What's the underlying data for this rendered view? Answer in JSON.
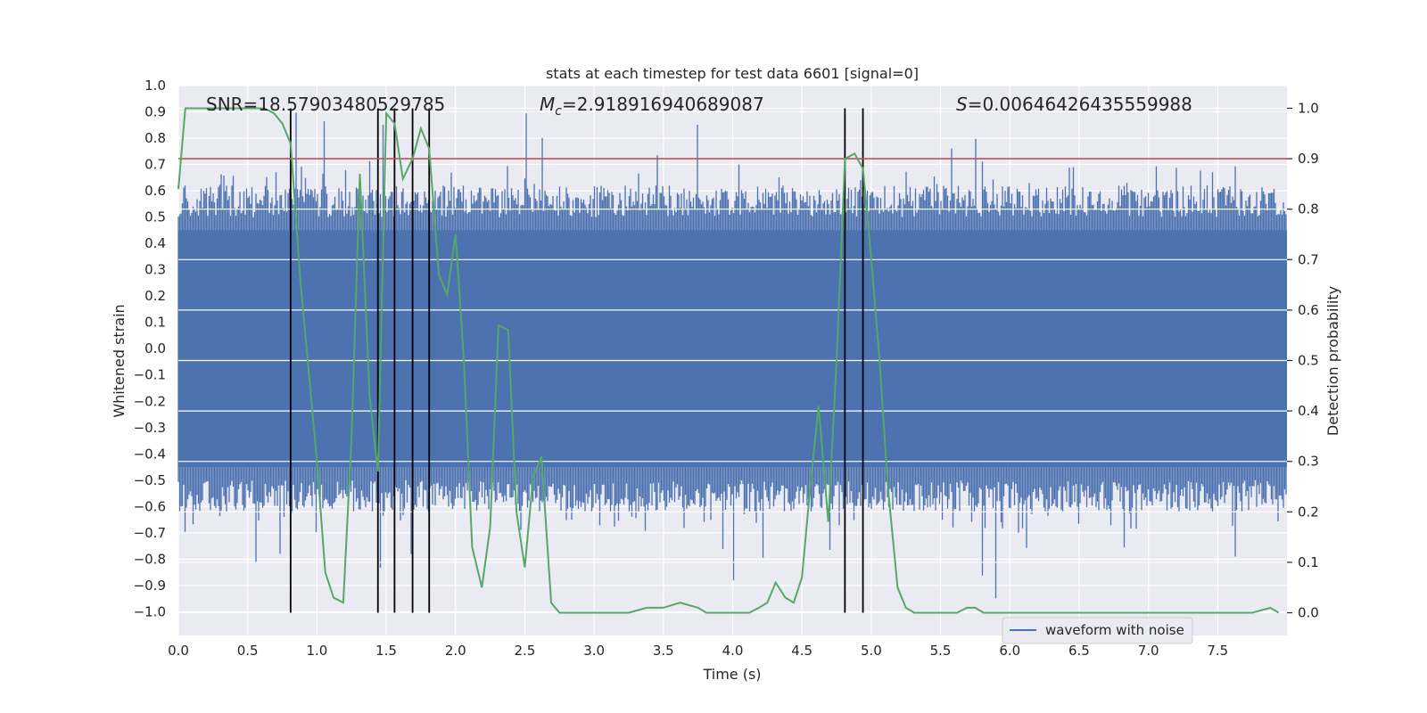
{
  "chart_data": {
    "type": "line",
    "title": "stats at each timestep for test data 6601 [signal=0]",
    "xlabel": "Time (s)",
    "ylabel": "Whitened strain",
    "y2label": "Detection probability",
    "xlim": [
      0,
      8.0
    ],
    "ylim": [
      -1.09,
      1.0
    ],
    "y2lim": [
      -0.045,
      1.045
    ],
    "xticks": [
      "0.0",
      "0.5",
      "1.0",
      "1.5",
      "2.0",
      "2.5",
      "3.0",
      "3.5",
      "4.0",
      "4.5",
      "5.0",
      "5.5",
      "6.0",
      "6.5",
      "7.0",
      "7.5"
    ],
    "xtick_values": [
      0,
      0.5,
      1,
      1.5,
      2,
      2.5,
      3,
      3.5,
      4,
      4.5,
      5,
      5.5,
      6,
      6.5,
      7,
      7.5
    ],
    "yticks": [
      "1.0",
      "0.9",
      "0.8",
      "0.7",
      "0.6",
      "0.5",
      "0.4",
      "0.3",
      "0.2",
      "0.1",
      "0.0",
      "−0.1",
      "−0.2",
      "−0.3",
      "−0.4",
      "−0.5",
      "−0.6",
      "−0.7",
      "−0.8",
      "−0.9",
      "−1.0"
    ],
    "ytick_values": [
      1.0,
      0.9,
      0.8,
      0.7,
      0.6,
      0.5,
      0.4,
      0.3,
      0.2,
      0.1,
      0.0,
      -0.1,
      -0.2,
      -0.3,
      -0.4,
      -0.5,
      -0.6,
      -0.7,
      -0.8,
      -0.9,
      -1.0
    ],
    "y2ticks": [
      "1.0",
      "0.9",
      "0.8",
      "0.7",
      "0.6",
      "0.5",
      "0.4",
      "0.3",
      "0.2",
      "0.1",
      "0.0"
    ],
    "y2tick_values": [
      1.0,
      0.9,
      0.8,
      0.7,
      0.6,
      0.5,
      0.4,
      0.3,
      0.2,
      0.1,
      0.0
    ],
    "annotations": {
      "snr": "SNR=18.57903480529785",
      "mc_symbol": "M",
      "mc_sub": "c",
      "mc_value": "=2.918916940689087",
      "s_symbol": "S",
      "s_value": "=0.00646426435559988"
    },
    "legend": {
      "label": "waveform with noise",
      "placement": "bottom-right"
    },
    "threshold": {
      "value": 0.9,
      "axis": "y2"
    },
    "vlines": [
      0.81,
      1.44,
      1.56,
      1.69,
      1.81,
      4.81,
      4.94
    ],
    "noise": {
      "envelope_low": -0.45,
      "envelope_high": 0.45,
      "peak_min": -0.98,
      "peak_max": 0.9
    },
    "series": [
      {
        "name": "detection probability",
        "axis": "y2",
        "x": [
          0.0,
          0.05,
          0.12,
          0.25,
          0.44,
          0.62,
          0.69,
          0.75,
          0.81,
          0.88,
          1.0,
          1.06,
          1.12,
          1.19,
          1.25,
          1.31,
          1.38,
          1.44,
          1.5,
          1.56,
          1.62,
          1.69,
          1.75,
          1.81,
          1.88,
          1.94,
          2.0,
          2.06,
          2.12,
          2.19,
          2.25,
          2.31,
          2.38,
          2.44,
          2.5,
          2.56,
          2.62,
          2.69,
          2.75,
          2.88,
          3.0,
          3.12,
          3.25,
          3.38,
          3.5,
          3.62,
          3.75,
          3.81,
          3.88,
          4.0,
          4.12,
          4.19,
          4.25,
          4.31,
          4.38,
          4.44,
          4.5,
          4.56,
          4.62,
          4.69,
          4.75,
          4.81,
          4.88,
          4.94,
          5.0,
          5.06,
          5.12,
          5.19,
          5.25,
          5.31,
          5.44,
          5.62,
          5.69,
          5.75,
          5.81,
          5.88,
          6.0,
          6.12,
          6.25,
          6.5,
          7.0,
          7.5,
          7.75,
          7.88,
          7.94
        ],
        "values": [
          0.84,
          1.0,
          1.0,
          1.0,
          1.0,
          1.0,
          0.99,
          0.97,
          0.93,
          0.66,
          0.3,
          0.08,
          0.03,
          0.02,
          0.35,
          0.87,
          0.43,
          0.28,
          0.99,
          0.97,
          0.86,
          0.9,
          0.96,
          0.92,
          0.67,
          0.63,
          0.75,
          0.5,
          0.13,
          0.05,
          0.17,
          0.57,
          0.56,
          0.2,
          0.09,
          0.27,
          0.31,
          0.02,
          0.0,
          0.0,
          0.0,
          0.0,
          0.0,
          0.01,
          0.01,
          0.02,
          0.01,
          0.0,
          0.0,
          0.0,
          0.0,
          0.01,
          0.02,
          0.06,
          0.03,
          0.02,
          0.07,
          0.25,
          0.41,
          0.18,
          0.5,
          0.9,
          0.91,
          0.88,
          0.7,
          0.5,
          0.25,
          0.05,
          0.01,
          0.0,
          0.0,
          0.0,
          0.01,
          0.01,
          0.0,
          0.0,
          0.0,
          0.0,
          0.0,
          0.0,
          0.0,
          0.0,
          0.0,
          0.01,
          0.0
        ],
        "color": "#55a868"
      }
    ],
    "colors": {
      "background": "#eaeaf2",
      "grid": "#ffffff",
      "waveform": "#4c72b0",
      "probability": "#55a868",
      "threshold": "#c44e52",
      "vline": "#000000"
    }
  }
}
